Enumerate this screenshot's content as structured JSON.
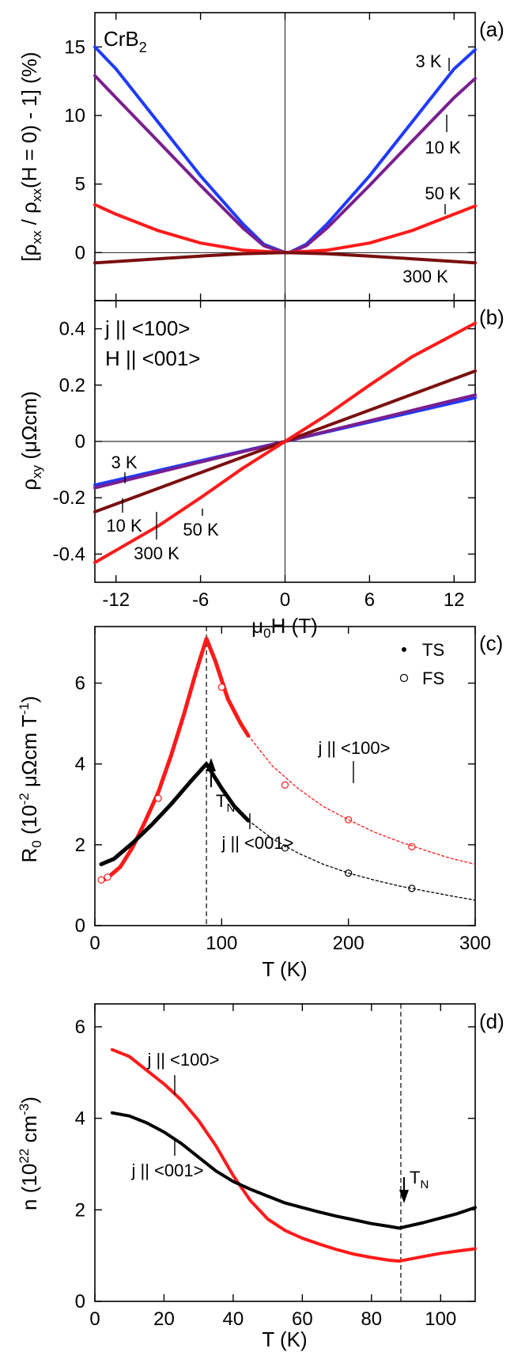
{
  "colors": {
    "blue": "#1f3bff",
    "purple": "#7a1f8f",
    "red": "#ff1a1a",
    "darkred": "#7a0f0f",
    "black": "#000000"
  },
  "chart_data": [
    {
      "type": "line",
      "panel_label": "(a)",
      "material": "CrB2",
      "ylabel": "[ρxx / ρxx(H = 0) - 1] (%)",
      "xlabel": "",
      "xlim": [
        -13.5,
        13.5
      ],
      "ylim": [
        -3.5,
        17.5
      ],
      "x_ticks": [
        -12,
        -6,
        0,
        6,
        12
      ],
      "y_ticks": [
        0,
        5,
        10,
        15
      ],
      "y_tick_labels": [
        "0",
        "5",
        "10",
        "15"
      ],
      "series": [
        {
          "name": "3 K",
          "color": "blue",
          "x": [
            -13.5,
            -12,
            -9,
            -6,
            -3,
            -1.5,
            0,
            0.3,
            1.5,
            3,
            6,
            9,
            12,
            13.5
          ],
          "y": [
            15,
            13.4,
            9.5,
            5.6,
            2.1,
            0.6,
            0,
            0,
            0.6,
            2.1,
            5.6,
            9.5,
            13.4,
            14.8
          ]
        },
        {
          "name": "10 K",
          "color": "purple",
          "x": [
            -13.5,
            -12,
            -9,
            -6,
            -3,
            -1.5,
            0,
            0.3,
            1.5,
            3,
            6,
            9,
            12,
            13.5
          ],
          "y": [
            12.9,
            11.3,
            8.1,
            4.9,
            1.8,
            0.5,
            0,
            0,
            0.5,
            1.8,
            4.9,
            8.1,
            11.3,
            12.7
          ]
        },
        {
          "name": "50 K",
          "color": "red",
          "x": [
            -13.5,
            -12,
            -9,
            -6,
            -3,
            0,
            3,
            6,
            9,
            12,
            13.5
          ],
          "y": [
            3.5,
            2.8,
            1.6,
            0.7,
            0.18,
            0,
            0.18,
            0.7,
            1.6,
            2.8,
            3.4
          ]
        },
        {
          "name": "300 K",
          "color": "darkred",
          "x": [
            -13.5,
            -9,
            -6,
            -3,
            0,
            3,
            6,
            9,
            13.5
          ],
          "y": [
            -0.75,
            -0.45,
            -0.25,
            -0.08,
            0,
            -0.08,
            -0.25,
            -0.45,
            -0.75
          ]
        }
      ],
      "annotations": [
        "3 K",
        "10 K",
        "50 K",
        "300 K"
      ]
    },
    {
      "type": "line",
      "panel_label": "(b)",
      "legend_lines": [
        "j || <100>",
        "H || <001>"
      ],
      "ylabel": "ρxy (μΩcm)",
      "xlabel": "μ0H (T)",
      "xlim": [
        -13.5,
        13.5
      ],
      "ylim": [
        -0.5,
        0.5
      ],
      "x_ticks": [
        -12,
        -6,
        0,
        6,
        12
      ],
      "x_tick_labels": [
        "-12",
        "-6",
        "0",
        "6",
        "12"
      ],
      "y_ticks": [
        -0.4,
        -0.2,
        0,
        0.2,
        0.4
      ],
      "y_tick_labels": [
        "-0.4",
        "-0.2",
        "0",
        "0.2",
        "0.4"
      ],
      "series": [
        {
          "name": "3 K",
          "color": "blue",
          "x": [
            -13.5,
            13.5
          ],
          "y": [
            -0.155,
            0.155
          ]
        },
        {
          "name": "10 K",
          "color": "purple",
          "x": [
            -13.5,
            13.5
          ],
          "y": [
            -0.165,
            0.165
          ]
        },
        {
          "name": "300 K",
          "color": "darkred",
          "x": [
            -13.5,
            0,
            13.5
          ],
          "y": [
            -0.25,
            0,
            0.25
          ]
        },
        {
          "name": "50 K",
          "color": "red",
          "x": [
            -13.5,
            -9,
            -6,
            -3,
            0,
            3,
            6,
            9,
            13.5
          ],
          "y": [
            -0.43,
            -0.3,
            -0.2,
            -0.095,
            0,
            0.095,
            0.2,
            0.3,
            0.42
          ]
        }
      ],
      "annotations": [
        "3 K",
        "10 K",
        "50 K",
        "300 K"
      ]
    },
    {
      "type": "line",
      "panel_label": "(c)",
      "ylabel": "R0 (10-2 μΩcm T-1)",
      "xlabel": "T (K)",
      "xlim": [
        0,
        300
      ],
      "ylim": [
        0,
        7.4
      ],
      "x_ticks": [
        0,
        100,
        200,
        300
      ],
      "x_tick_labels": [
        "0",
        "100",
        "200",
        "300"
      ],
      "y_ticks": [
        0,
        2,
        4,
        6
      ],
      "y_tick_labels": [
        "0",
        "2",
        "4",
        "6"
      ],
      "legend": [
        "TS",
        "FS"
      ],
      "series": [
        {
          "name": "j || <100>",
          "color": "red",
          "kind": "TS",
          "x": [
            5,
            10,
            20,
            30,
            40,
            50,
            60,
            70,
            80,
            88,
            95,
            105,
            115,
            121
          ],
          "y": [
            1.1,
            1.18,
            1.45,
            1.95,
            2.6,
            3.3,
            4.2,
            5.2,
            6.3,
            7.1,
            6.55,
            5.6,
            5.0,
            4.7
          ]
        },
        {
          "name": "j || <001>",
          "color": "black",
          "kind": "TS",
          "x": [
            5,
            15,
            30,
            45,
            60,
            75,
            88,
            100,
            110,
            121
          ],
          "y": [
            1.52,
            1.65,
            2.05,
            2.5,
            3.0,
            3.55,
            4.0,
            3.4,
            2.95,
            2.6
          ]
        },
        {
          "name": "j || <100> FS",
          "color": "red",
          "kind": "FS",
          "x": [
            5,
            10,
            50,
            100,
            150,
            200,
            250
          ],
          "y": [
            1.13,
            1.2,
            3.15,
            5.9,
            3.48,
            2.62,
            1.95
          ]
        },
        {
          "name": "j || <001> FS",
          "color": "black",
          "kind": "FS",
          "x": [
            150,
            200,
            250
          ],
          "y": [
            1.92,
            1.3,
            0.92
          ]
        },
        {
          "name": "j || <100> fit",
          "color": "red",
          "kind": "fit",
          "x": [
            121,
            140,
            160,
            180,
            200,
            220,
            240,
            260,
            280,
            300
          ],
          "y": [
            4.7,
            3.95,
            3.4,
            2.95,
            2.62,
            2.32,
            2.08,
            1.87,
            1.67,
            1.52
          ]
        },
        {
          "name": "j || <001> fit",
          "color": "black",
          "kind": "fit",
          "x": [
            121,
            140,
            160,
            180,
            200,
            220,
            240,
            260,
            280,
            300
          ],
          "y": [
            2.6,
            2.15,
            1.8,
            1.52,
            1.3,
            1.13,
            0.98,
            0.86,
            0.74,
            0.63
          ]
        }
      ],
      "vline_x": 88,
      "annotations": [
        "T_N",
        "j || <100>",
        "j || <001>"
      ]
    },
    {
      "type": "line",
      "panel_label": "(d)",
      "ylabel": "n (1022 cm-3)",
      "xlabel": "T (K)",
      "xlim": [
        0,
        110
      ],
      "ylim": [
        0,
        6.5
      ],
      "x_ticks": [
        0,
        20,
        40,
        60,
        80,
        100
      ],
      "x_tick_labels": [
        "0",
        "20",
        "40",
        "60",
        "80",
        "100"
      ],
      "y_ticks": [
        0,
        2,
        4,
        6
      ],
      "y_tick_labels": [
        "0",
        "2",
        "4",
        "6"
      ],
      "series": [
        {
          "name": "j || <100>",
          "color": "red",
          "x": [
            5,
            10,
            15,
            20,
            25,
            30,
            35,
            40,
            45,
            50,
            55,
            60,
            65,
            70,
            75,
            80,
            85,
            88,
            95,
            100,
            105,
            110
          ],
          "y": [
            5.5,
            5.35,
            5.05,
            4.75,
            4.4,
            3.95,
            3.4,
            2.75,
            2.2,
            1.8,
            1.55,
            1.38,
            1.25,
            1.13,
            1.03,
            0.96,
            0.9,
            0.88,
            0.98,
            1.05,
            1.1,
            1.15
          ]
        },
        {
          "name": "j || <001>",
          "color": "black",
          "x": [
            5,
            10,
            15,
            20,
            25,
            30,
            35,
            40,
            45,
            50,
            55,
            60,
            65,
            70,
            75,
            80,
            85,
            88,
            95,
            100,
            105,
            110
          ],
          "y": [
            4.12,
            4.05,
            3.9,
            3.7,
            3.45,
            3.15,
            2.85,
            2.62,
            2.45,
            2.3,
            2.15,
            2.05,
            1.95,
            1.86,
            1.78,
            1.7,
            1.64,
            1.6,
            1.72,
            1.82,
            1.92,
            2.05
          ]
        }
      ],
      "vline_x": 88.5,
      "annotations": [
        "T_N",
        "j || <100>",
        "j || <001>"
      ]
    }
  ]
}
